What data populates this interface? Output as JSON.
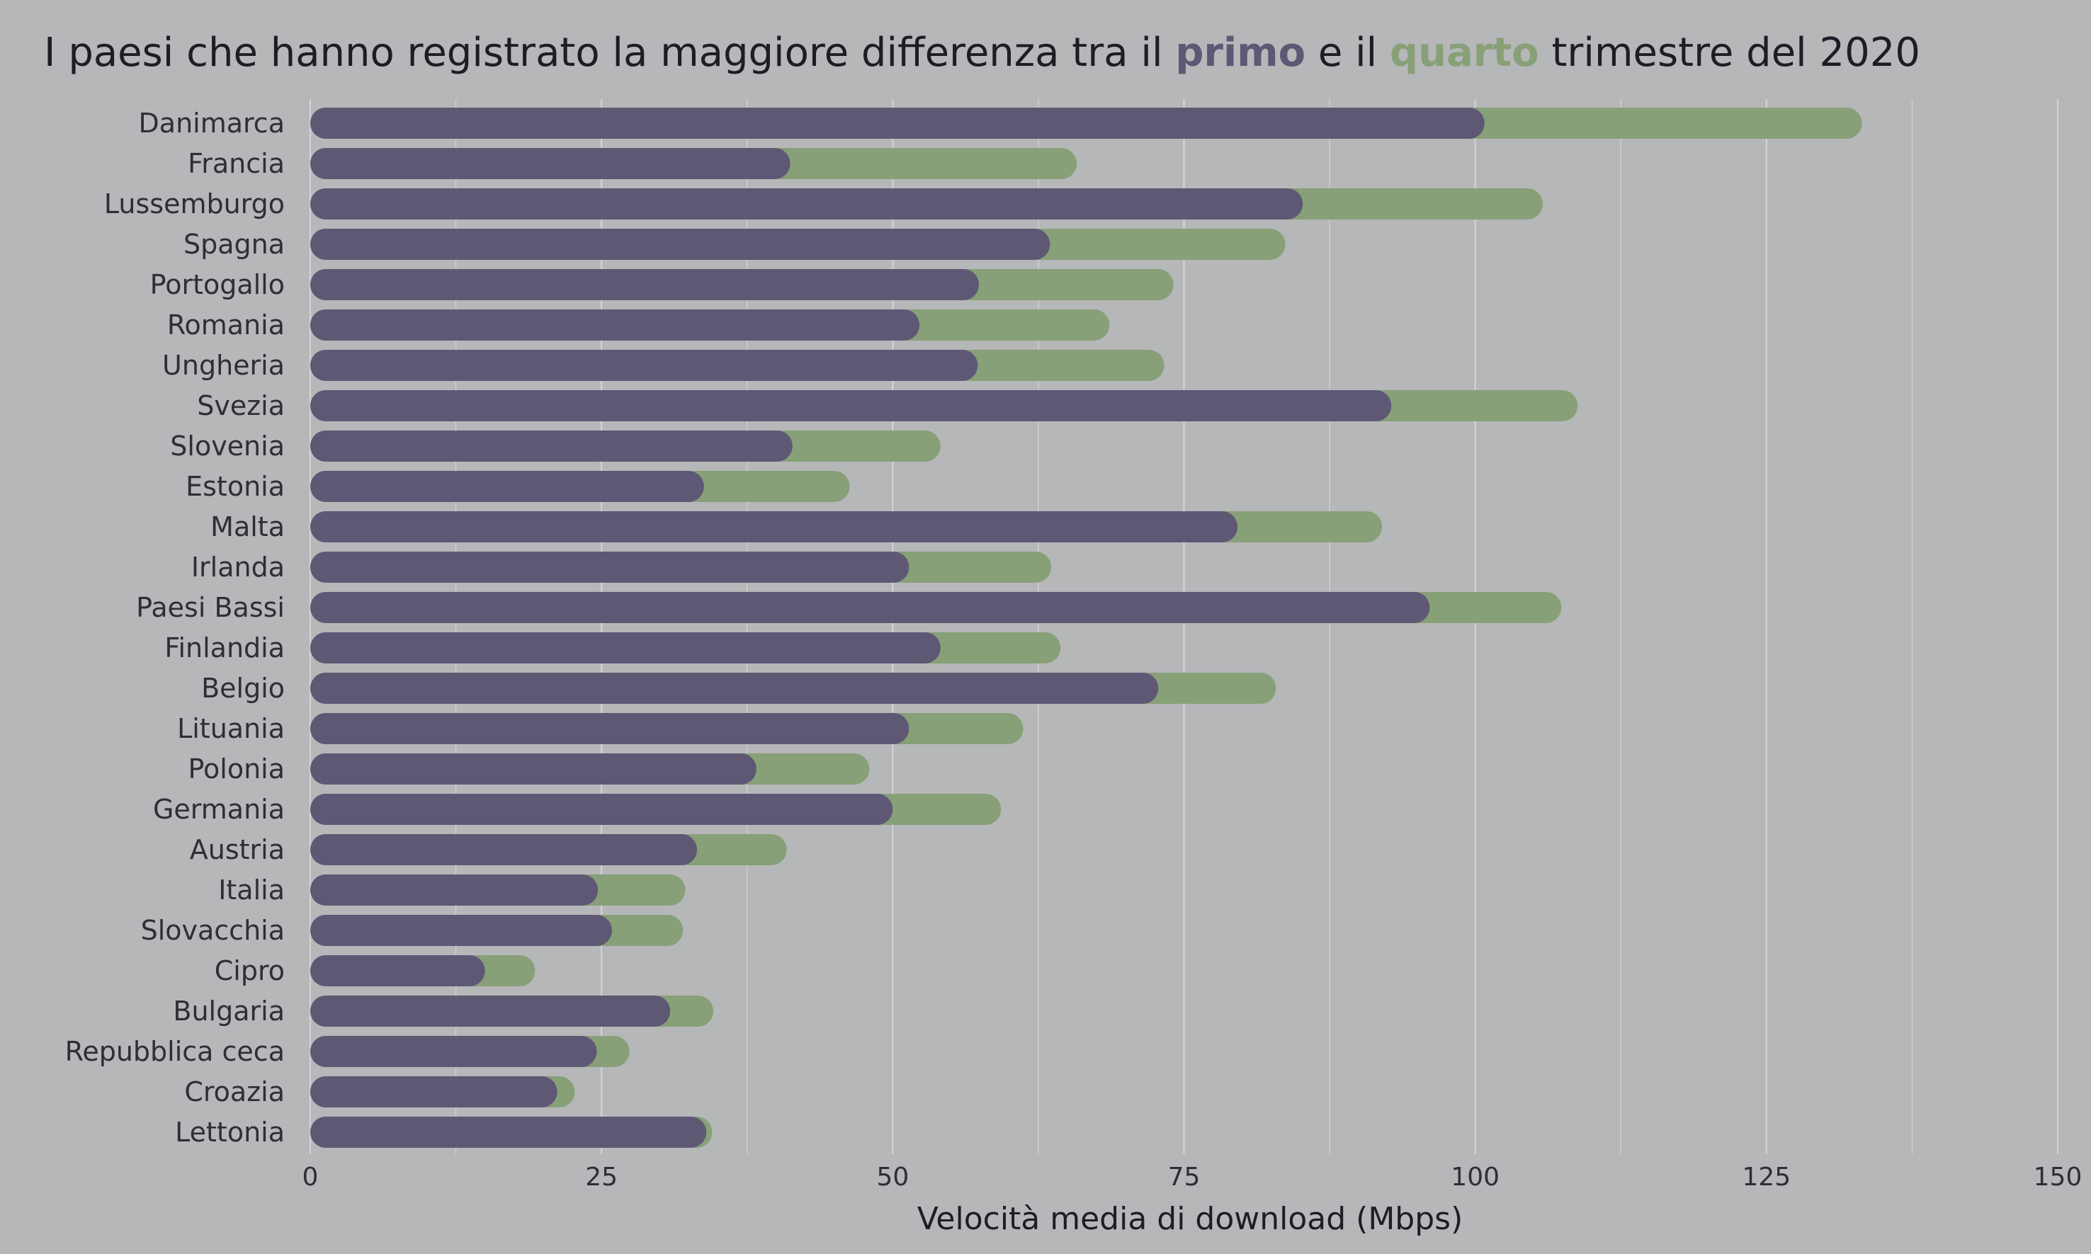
{
  "title": {
    "part1": "I paesi che hanno registrato la maggiore differenza tra il ",
    "highlight1": "primo",
    "part2": " e il ",
    "highlight2": "quarto",
    "part3": " trimestre del 2020"
  },
  "colors": {
    "background": "#b6b7b9",
    "primo": "#5e5875",
    "quarto": "#87a077",
    "grid": "#d2d3d5"
  },
  "chart_data": {
    "type": "bar",
    "orientation": "horizontal",
    "xlabel": "Velocità media di download (Mbps)",
    "xlim": [
      0,
      150
    ],
    "xticks": [
      0,
      25,
      50,
      75,
      100,
      125,
      150
    ],
    "grid": true,
    "categories": [
      "Danimarca",
      "Francia",
      "Lussemburgo",
      "Spagna",
      "Portogallo",
      "Romania",
      "Ungheria",
      "Svezia",
      "Slovenia",
      "Estonia",
      "Malta",
      "Irlanda",
      "Paesi Bassi",
      "Finlandia",
      "Belgio",
      "Lituania",
      "Polonia",
      "Germania",
      "Austria",
      "Italia",
      "Slovacchia",
      "Cipro",
      "Bulgaria",
      "Repubblica ceca",
      "Croazia",
      "Lettonia"
    ],
    "series": [
      {
        "name": "quarto",
        "values": [
          133.2,
          65.8,
          105.8,
          83.7,
          74.1,
          68.6,
          73.3,
          108.8,
          54.1,
          46.3,
          92.0,
          63.6,
          107.4,
          64.4,
          82.9,
          61.2,
          48.0,
          59.3,
          40.9,
          32.2,
          32.0,
          19.3,
          34.6,
          27.4,
          22.7,
          34.5
        ]
      },
      {
        "name": "primo",
        "values": [
          100.8,
          41.2,
          85.2,
          63.5,
          57.4,
          52.3,
          57.3,
          92.8,
          41.4,
          33.8,
          79.6,
          51.4,
          96.1,
          54.1,
          72.8,
          51.4,
          38.3,
          50.0,
          33.2,
          24.7,
          25.9,
          15.0,
          30.9,
          24.6,
          21.2,
          34.0
        ]
      }
    ]
  }
}
